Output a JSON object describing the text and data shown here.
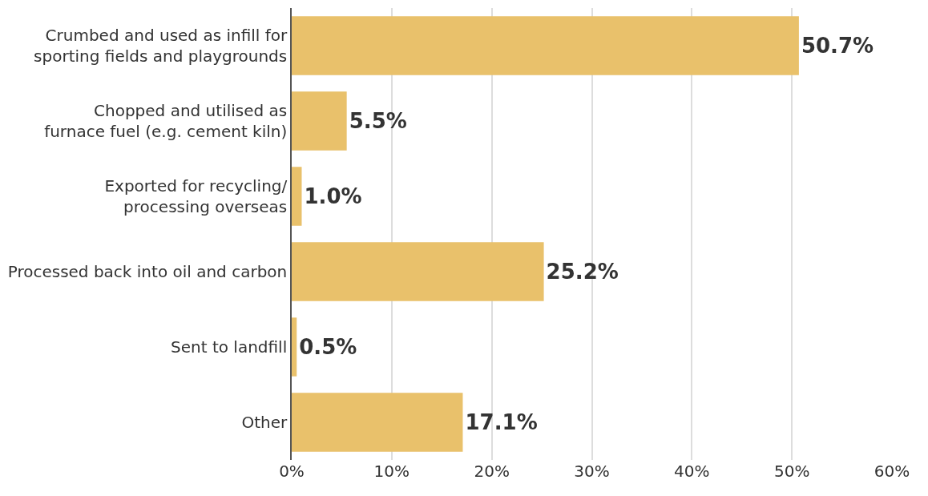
{
  "chart_data": {
    "type": "bar",
    "orientation": "horizontal",
    "categories": [
      "Crumbed and used as infill for\nsporting fields and playgrounds",
      "Chopped and utilised as\nfurnace fuel (e.g. cement kiln)",
      "Exported for recycling/\nprocessing overseas",
      "Processed back into oil and carbon",
      "Sent to landfill",
      "Other"
    ],
    "values": [
      50.7,
      5.5,
      1.0,
      25.2,
      0.5,
      17.1
    ],
    "value_labels": [
      "50.7%",
      "5.5%",
      "1.0%",
      "25.2%",
      "0.5%",
      "17.1%"
    ],
    "color": "#e9c16b",
    "xlim": [
      0,
      60
    ],
    "xticks": [
      {
        "value": 0,
        "label": "0%"
      },
      {
        "value": 10,
        "label": "10%"
      },
      {
        "value": 20,
        "label": "20%"
      },
      {
        "value": 30,
        "label": "30%"
      },
      {
        "value": 40,
        "label": "40%"
      },
      {
        "value": 50,
        "label": "50%"
      },
      {
        "value": 60,
        "label": "60%"
      }
    ],
    "grid": "x",
    "legend": false
  }
}
